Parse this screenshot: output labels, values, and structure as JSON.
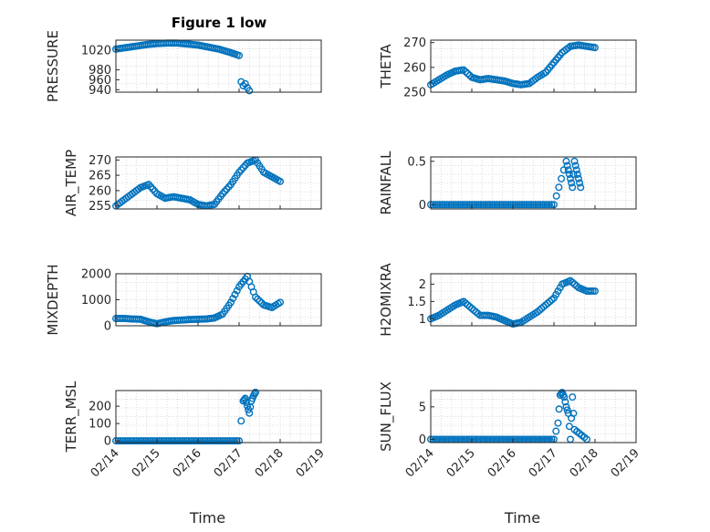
{
  "figure_title": "Figure 1 low",
  "colors": {
    "series": "#0072bd",
    "axis": "#262626",
    "grid": "#dcdcdc",
    "background": "#ffffff"
  },
  "chart_data": [
    {
      "type": "scatter",
      "title": "Figure 1 low",
      "ylabel": "PRESSURE",
      "xlabel": "",
      "ylim": [
        935,
        1040
      ],
      "yticks": [
        940,
        960,
        980,
        1020
      ],
      "ytick_labels": [
        "940",
        "960",
        "980",
        "1020"
      ],
      "xlim": [
        0,
        5
      ],
      "xticks": [
        0,
        1,
        2,
        3,
        4,
        5
      ],
      "xtick_labels": [],
      "grid": true,
      "x_unit": "days since 02/14",
      "y": [
        1022,
        1025,
        1028,
        1031,
        1033,
        1034,
        1034,
        1032,
        1030,
        1026,
        1022,
        1016,
        1009
      ],
      "x": [
        0,
        0.25,
        0.5,
        0.75,
        1.0,
        1.25,
        1.5,
        1.75,
        2.0,
        2.25,
        2.5,
        2.75,
        3.0
      ],
      "points_extra": {
        "x": [
          3.05,
          3.1,
          3.15,
          3.2,
          3.25
        ],
        "y": [
          956,
          948,
          952,
          944,
          938
        ]
      }
    },
    {
      "type": "scatter",
      "ylabel": "THETA",
      "xlabel": "",
      "ylim": [
        250,
        271
      ],
      "yticks": [
        250,
        260,
        270
      ],
      "ytick_labels": [
        "250",
        "260",
        "270"
      ],
      "xlim": [
        0,
        5
      ],
      "xticks": [
        0,
        1,
        2,
        3,
        4,
        5
      ],
      "xtick_labels": [],
      "grid": true,
      "x": [
        0,
        0.2,
        0.4,
        0.6,
        0.8,
        1.0,
        1.2,
        1.4,
        1.6,
        1.8,
        2.0,
        2.2,
        2.4,
        2.6,
        2.8,
        3.0,
        3.2,
        3.4,
        3.6,
        3.8,
        4.0
      ],
      "y": [
        253,
        255,
        257,
        258.5,
        259,
        256,
        255,
        255.5,
        255,
        254.5,
        253.5,
        253,
        253.5,
        256,
        258,
        262,
        266,
        268.5,
        269,
        268.5,
        268
      ]
    },
    {
      "type": "scatter",
      "ylabel": "AIR_TEMP",
      "xlabel": "",
      "ylim": [
        254,
        271
      ],
      "yticks": [
        255,
        260,
        265,
        270
      ],
      "ytick_labels": [
        "255",
        "260",
        "265",
        "270"
      ],
      "xlim": [
        0,
        5
      ],
      "xticks": [
        0,
        1,
        2,
        3,
        4,
        5
      ],
      "xtick_labels": [],
      "grid": true,
      "x": [
        0,
        0.2,
        0.4,
        0.6,
        0.8,
        1.0,
        1.2,
        1.4,
        1.6,
        1.8,
        2.0,
        2.2,
        2.4,
        2.6,
        2.8,
        3.0,
        3.2,
        3.4,
        3.6,
        3.8,
        4.0
      ],
      "y": [
        255,
        257,
        259,
        261,
        262,
        259,
        257.5,
        258,
        257.5,
        257,
        255.5,
        255,
        255.5,
        259,
        262,
        266,
        269,
        270,
        266,
        264.5,
        263
      ]
    },
    {
      "type": "scatter",
      "ylabel": "RAINFALL",
      "xlabel": "",
      "ylim": [
        -0.05,
        0.55
      ],
      "yticks": [
        0,
        0.5
      ],
      "ytick_labels": [
        "0",
        "0.5"
      ],
      "xlim": [
        0,
        5
      ],
      "xticks": [
        0,
        1,
        2,
        3,
        4,
        5
      ],
      "xtick_labels": [],
      "grid": true,
      "x": [
        0,
        0.5,
        1,
        1.5,
        2,
        2.5,
        3.0,
        3.3,
        3.35,
        3.4,
        3.45,
        3.5,
        3.55,
        3.6,
        3.65
      ],
      "y": [
        0,
        0,
        0,
        0,
        0,
        0,
        0,
        0.5,
        0.4,
        0.3,
        0.2,
        0.5,
        0.4,
        0.3,
        0.2
      ]
    },
    {
      "type": "scatter",
      "ylabel": "MIXDEPTH",
      "xlabel": "",
      "ylim": [
        0,
        2000
      ],
      "yticks": [
        0,
        1000,
        2000
      ],
      "ytick_labels": [
        "0",
        "1000",
        "2000"
      ],
      "xlim": [
        0,
        5
      ],
      "xticks": [
        0,
        1,
        2,
        3,
        4,
        5
      ],
      "xtick_labels": [],
      "grid": true,
      "x": [
        0,
        0.2,
        0.4,
        0.6,
        0.8,
        1.0,
        1.2,
        1.4,
        1.6,
        1.8,
        2.0,
        2.2,
        2.4,
        2.6,
        2.8,
        3.0,
        3.2,
        3.4,
        3.6,
        3.8,
        4.0
      ],
      "y": [
        280,
        280,
        260,
        250,
        150,
        80,
        150,
        200,
        220,
        240,
        250,
        260,
        300,
        450,
        900,
        1500,
        1900,
        1100,
        800,
        700,
        900
      ]
    },
    {
      "type": "scatter",
      "ylabel": "H2OMIXRA",
      "xlabel": "",
      "ylim": [
        0.8,
        2.3
      ],
      "yticks": [
        1,
        1.5,
        2
      ],
      "ytick_labels": [
        "1",
        "1.5",
        "2"
      ],
      "xlim": [
        0,
        5
      ],
      "xticks": [
        0,
        1,
        2,
        3,
        4,
        5
      ],
      "xtick_labels": [],
      "grid": true,
      "x": [
        0,
        0.2,
        0.4,
        0.6,
        0.8,
        1.0,
        1.2,
        1.4,
        1.6,
        1.8,
        2.0,
        2.2,
        2.4,
        2.6,
        2.8,
        3.0,
        3.2,
        3.4,
        3.6,
        3.8,
        4.0
      ],
      "y": [
        1.0,
        1.1,
        1.25,
        1.4,
        1.5,
        1.3,
        1.1,
        1.1,
        1.05,
        0.95,
        0.85,
        0.9,
        1.05,
        1.2,
        1.4,
        1.6,
        2.0,
        2.1,
        1.9,
        1.8,
        1.8
      ]
    },
    {
      "type": "scatter",
      "ylabel": "TERR_MSL",
      "xlabel": "Time",
      "ylim": [
        -10,
        290
      ],
      "yticks": [
        0,
        100,
        200
      ],
      "ytick_labels": [
        "0",
        "100",
        "200"
      ],
      "xlim": [
        0,
        5
      ],
      "xticks": [
        0,
        1,
        2,
        3,
        4,
        5
      ],
      "xtick_labels": [
        "02/14",
        "02/15",
        "02/16",
        "02/17",
        "02/18",
        "02/19"
      ],
      "grid": true,
      "x": [
        0,
        0.5,
        1,
        1.5,
        2,
        2.5,
        3.0,
        3.1,
        3.15,
        3.2,
        3.25,
        3.3,
        3.35,
        3.4
      ],
      "y": [
        0,
        0,
        0,
        0,
        0,
        0,
        0,
        230,
        245,
        200,
        160,
        230,
        260,
        280
      ]
    },
    {
      "type": "scatter",
      "ylabel": "SUN_FLUX",
      "xlabel": "Time",
      "ylim": [
        -0.5,
        7.5
      ],
      "yticks": [
        0,
        5
      ],
      "ytick_labels": [
        "0",
        "5"
      ],
      "xlim": [
        0,
        5
      ],
      "xticks": [
        0,
        1,
        2,
        3,
        4,
        5
      ],
      "xtick_labels": [
        "02/14",
        "02/15",
        "02/16",
        "02/17",
        "02/18",
        "02/19"
      ],
      "grid": true,
      "x": [
        0,
        0.5,
        1,
        1.5,
        2,
        2.5,
        3.0,
        3.1,
        3.15,
        3.2,
        3.25,
        3.3,
        3.35,
        3.4,
        3.45,
        3.5,
        3.8
      ],
      "y": [
        0,
        0,
        0,
        0,
        0,
        0,
        0,
        2.5,
        6.8,
        7.2,
        6.5,
        5.0,
        4.0,
        0,
        6.5,
        1.5,
        0
      ]
    }
  ]
}
